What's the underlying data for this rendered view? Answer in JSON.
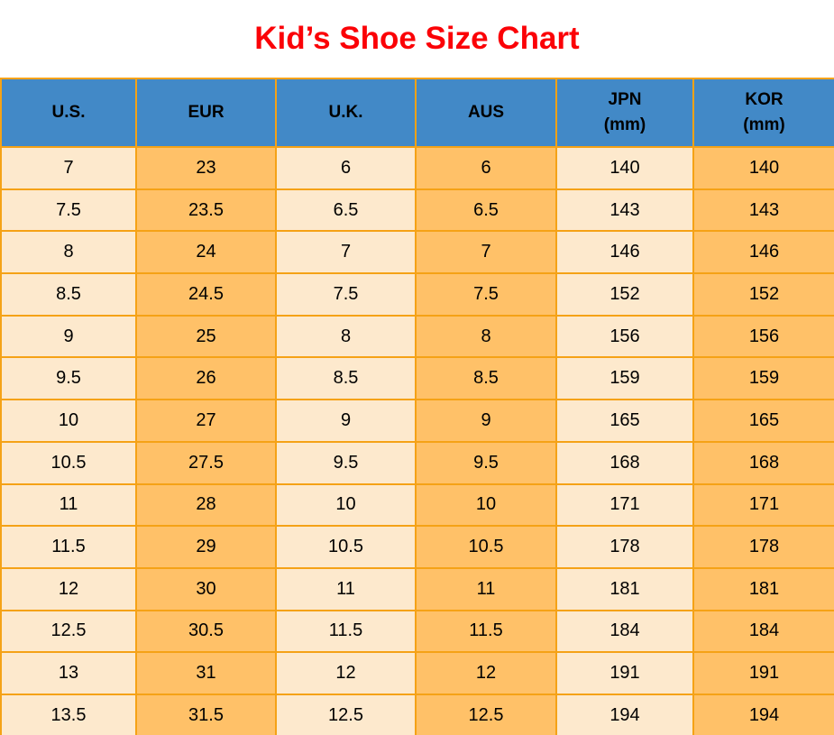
{
  "title": "Kid’s Shoe Size Chart",
  "colors": {
    "title_color": "#fb0207",
    "header_bg": "#4289c7",
    "col_light": "#fde9cd",
    "col_orange": "#ffc168",
    "border_color": "#f5a216",
    "text_color": "#000000"
  },
  "table": {
    "headers": [
      {
        "label": "U.S.",
        "sub": ""
      },
      {
        "label": "EUR",
        "sub": ""
      },
      {
        "label": "U.K.",
        "sub": ""
      },
      {
        "label": "AUS",
        "sub": ""
      },
      {
        "label": "JPN",
        "sub": "(mm)"
      },
      {
        "label": "KOR",
        "sub": "(mm)"
      }
    ]
  },
  "chart_data": {
    "type": "table",
    "title": "Kid’s Shoe Size Chart",
    "columns": [
      "U.S.",
      "EUR",
      "U.K.",
      "AUS",
      "JPN (mm)",
      "KOR (mm)"
    ],
    "rows": [
      [
        "7",
        "23",
        "6",
        "6",
        "140",
        "140"
      ],
      [
        "7.5",
        "23.5",
        "6.5",
        "6.5",
        "143",
        "143"
      ],
      [
        "8",
        "24",
        "7",
        "7",
        "146",
        "146"
      ],
      [
        "8.5",
        "24.5",
        "7.5",
        "7.5",
        "152",
        "152"
      ],
      [
        "9",
        "25",
        "8",
        "8",
        "156",
        "156"
      ],
      [
        "9.5",
        "26",
        "8.5",
        "8.5",
        "159",
        "159"
      ],
      [
        "10",
        "27",
        "9",
        "9",
        "165",
        "165"
      ],
      [
        "10.5",
        "27.5",
        "9.5",
        "9.5",
        "168",
        "168"
      ],
      [
        "11",
        "28",
        "10",
        "10",
        "171",
        "171"
      ],
      [
        "11.5",
        "29",
        "10.5",
        "10.5",
        "178",
        "178"
      ],
      [
        "12",
        "30",
        "11",
        "11",
        "181",
        "181"
      ],
      [
        "12.5",
        "30.5",
        "11.5",
        "11.5",
        "184",
        "184"
      ],
      [
        "13",
        "31",
        "12",
        "12",
        "191",
        "191"
      ],
      [
        "13.5",
        "31.5",
        "12.5",
        "12.5",
        "194",
        "194"
      ]
    ]
  }
}
